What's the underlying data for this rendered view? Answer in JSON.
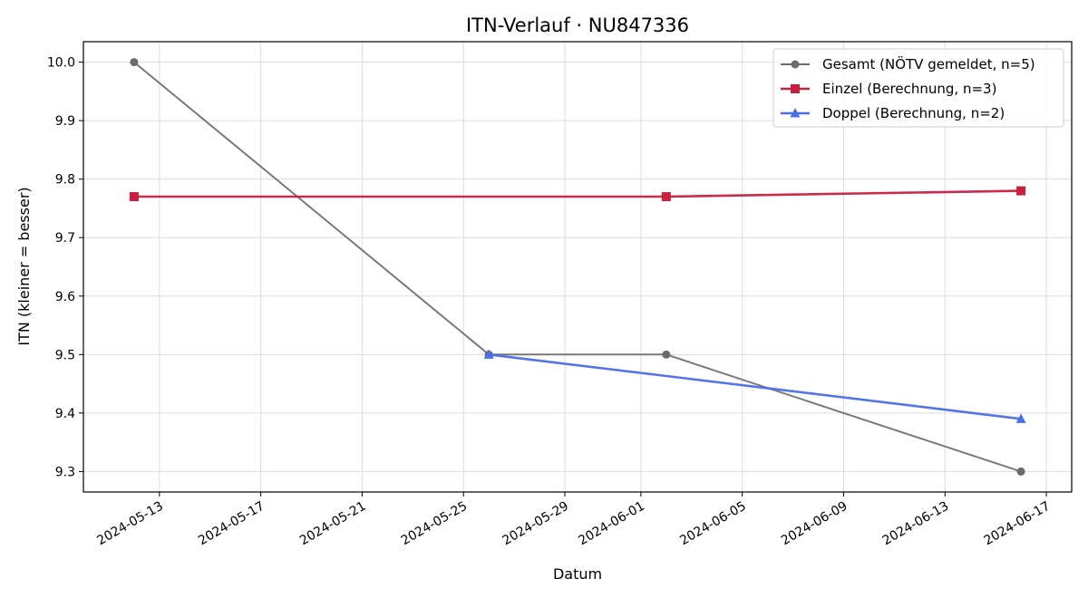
{
  "chart_data": {
    "type": "line",
    "title": "ITN-Verlauf · NU847336",
    "xlabel": "Datum",
    "ylabel": "ITN  (kleiner = besser)",
    "x_type": "date",
    "xlim": [
      "2024-05-10",
      "2024-06-18"
    ],
    "ylim": [
      9.265,
      10.035
    ],
    "x_ticks": [
      "2024-05-13",
      "2024-05-17",
      "2024-05-21",
      "2024-05-25",
      "2024-05-29",
      "2024-06-01",
      "2024-06-05",
      "2024-06-09",
      "2024-06-13",
      "2024-06-17"
    ],
    "y_ticks": [
      9.3,
      9.4,
      9.5,
      9.6,
      9.7,
      9.8,
      9.9,
      10.0
    ],
    "y_tick_labels": [
      "9.3",
      "9.4",
      "9.5",
      "9.6",
      "9.7",
      "9.8",
      "9.9",
      "10.0"
    ],
    "grid": true,
    "legend_position": "top-right",
    "series": [
      {
        "name": "Gesamt (NÖTV gemeldet, n=5)",
        "color": "#6b6b6b",
        "marker": "circle",
        "points": [
          {
            "x": "2024-05-12",
            "y": 10.0
          },
          {
            "x": "2024-05-26",
            "y": 9.5
          },
          {
            "x": "2024-06-02",
            "y": 9.5
          },
          {
            "x": "2024-06-16",
            "y": 9.3
          }
        ]
      },
      {
        "name": "Einzel (Berechnung, n=3)",
        "color": "#c8203f",
        "marker": "square",
        "points": [
          {
            "x": "2024-05-12",
            "y": 9.77
          },
          {
            "x": "2024-06-02",
            "y": 9.77
          },
          {
            "x": "2024-06-16",
            "y": 9.78
          }
        ]
      },
      {
        "name": "Doppel (Berechnung, n=2)",
        "color": "#4a6ee8",
        "marker": "triangle",
        "points": [
          {
            "x": "2024-05-26",
            "y": 9.5
          },
          {
            "x": "2024-06-16",
            "y": 9.39
          }
        ]
      }
    ]
  }
}
